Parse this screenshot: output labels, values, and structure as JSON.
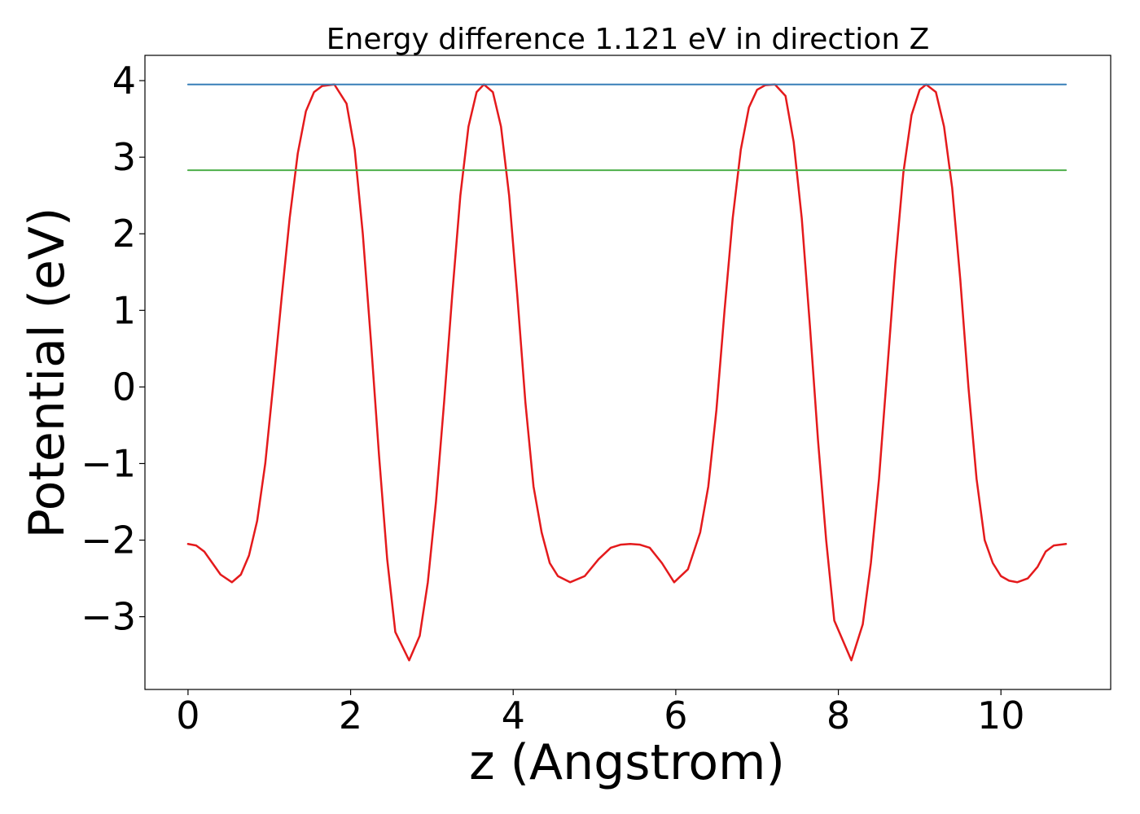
{
  "chart_data": {
    "type": "line",
    "title": "Energy difference 1.121 eV in direction Z",
    "xlabel": "z (Angstrom)",
    "ylabel": "Potential (eV)",
    "xlim": [
      -0.53,
      11.35
    ],
    "ylim": [
      -3.95,
      4.33
    ],
    "xticks": [
      0,
      2,
      4,
      6,
      8,
      10
    ],
    "xtick_labels": [
      "0",
      "2",
      "4",
      "6",
      "8",
      "10"
    ],
    "yticks": [
      -3,
      -2,
      -1,
      0,
      1,
      2,
      3,
      4
    ],
    "ytick_labels": [
      "−3",
      "−2",
      "−1",
      "0",
      "1",
      "2",
      "3",
      "4"
    ],
    "grid": false,
    "series": [
      {
        "color": "#e41a1c",
        "x": [
          0,
          0.1,
          0.2,
          0.3,
          0.4,
          0.54,
          0.65,
          0.75,
          0.85,
          0.95,
          1.05,
          1.15,
          1.25,
          1.35,
          1.45,
          1.55,
          1.65,
          1.8,
          1.95,
          2.05,
          2.15,
          2.25,
          2.35,
          2.45,
          2.55,
          2.72,
          2.85,
          2.95,
          3.05,
          3.15,
          3.25,
          3.35,
          3.45,
          3.55,
          3.64,
          3.75,
          3.85,
          3.95,
          4.05,
          4.15,
          4.25,
          4.35,
          4.45,
          4.55,
          4.7,
          4.88,
          5.05,
          5.2,
          5.32,
          5.44,
          5.56,
          5.68,
          5.83,
          5.98,
          6.15,
          6.3,
          6.4,
          6.5,
          6.6,
          6.7,
          6.8,
          6.9,
          7.0,
          7.1,
          7.22,
          7.35,
          7.45,
          7.55,
          7.65,
          7.75,
          7.85,
          7.95,
          8.16,
          8.3,
          8.4,
          8.5,
          8.6,
          8.7,
          8.8,
          8.9,
          9.0,
          9.08,
          9.2,
          9.3,
          9.4,
          9.5,
          9.6,
          9.7,
          9.8,
          9.9,
          10.0,
          10.1,
          10.2,
          10.33,
          10.45,
          10.55,
          10.65,
          10.8
        ],
        "y": [
          -2.05,
          -2.07,
          -2.15,
          -2.3,
          -2.45,
          -2.55,
          -2.45,
          -2.2,
          -1.75,
          -1.0,
          0.05,
          1.15,
          2.2,
          3.05,
          3.6,
          3.85,
          3.93,
          3.95,
          3.7,
          3.1,
          2.0,
          0.6,
          -0.9,
          -2.25,
          -3.2,
          -3.57,
          -3.25,
          -2.55,
          -1.5,
          -0.2,
          1.2,
          2.5,
          3.4,
          3.85,
          3.95,
          3.85,
          3.4,
          2.5,
          1.2,
          -0.2,
          -1.3,
          -1.9,
          -2.3,
          -2.47,
          -2.55,
          -2.47,
          -2.25,
          -2.1,
          -2.06,
          -2.05,
          -2.06,
          -2.1,
          -2.3,
          -2.55,
          -2.38,
          -1.9,
          -1.3,
          -0.3,
          1.0,
          2.2,
          3.1,
          3.65,
          3.88,
          3.94,
          3.95,
          3.8,
          3.2,
          2.2,
          0.8,
          -0.7,
          -2.0,
          -3.05,
          -3.57,
          -3.1,
          -2.3,
          -1.2,
          0.2,
          1.6,
          2.8,
          3.55,
          3.88,
          3.95,
          3.85,
          3.4,
          2.6,
          1.4,
          0.0,
          -1.2,
          -2.0,
          -2.3,
          -2.47,
          -2.53,
          -2.55,
          -2.5,
          -2.35,
          -2.15,
          -2.07,
          -2.05
        ],
        "stroke_width": 2.5
      },
      {
        "color": "#377eb8",
        "x": [
          0,
          10.8
        ],
        "y": [
          3.95,
          3.95
        ],
        "stroke_width": 2
      },
      {
        "color": "#4daf4a",
        "x": [
          0,
          10.8
        ],
        "y": [
          2.83,
          2.83
        ],
        "stroke_width": 2
      }
    ]
  }
}
